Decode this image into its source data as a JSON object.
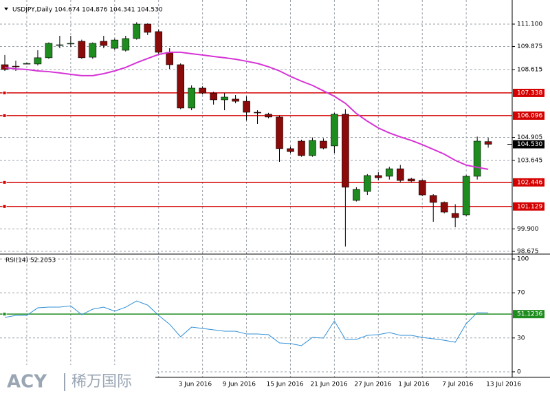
{
  "chart_data": [
    {
      "type": "candlestick",
      "title": "USDJPY,Daily 104.674 104.876 104.341 104.530",
      "categories": [
        null,
        null,
        null,
        null,
        null,
        null,
        null,
        null,
        null,
        null,
        null,
        null,
        null,
        null,
        null,
        null,
        "3 Jun 2016",
        null,
        null,
        null,
        "9 Jun 2016",
        null,
        null,
        null,
        "15 Jun 2016",
        null,
        null,
        null,
        "21 Jun 2016",
        null,
        null,
        null,
        "27 Jun 2016",
        null,
        null,
        null,
        "1 Jul 2016",
        null,
        null,
        null,
        "7 Jul 2016",
        null,
        null,
        null,
        "13 Jul 2016"
      ],
      "open": [
        108.88,
        108.8,
        108.94,
        108.92,
        109.26,
        109.95,
        110.02,
        110.16,
        109.29,
        110.16,
        109.78,
        109.67,
        110.31,
        111.1,
        110.69,
        109.56,
        108.88,
        106.51,
        107.6,
        107.33,
        106.96,
        107.0,
        106.88,
        106.28,
        106.17,
        106.02,
        104.29,
        104.7,
        103.91,
        104.7,
        104.44,
        106.17,
        101.46,
        101.95,
        102.82,
        102.78,
        103.19,
        102.63,
        102.55,
        101.73,
        101.35,
        100.75,
        100.67,
        102.78,
        104.674
      ],
      "high": [
        109.41,
        109.1,
        109.0,
        109.67,
        110.1,
        110.46,
        110.46,
        110.25,
        110.1,
        110.46,
        110.31,
        110.46,
        111.2,
        111.15,
        110.8,
        109.78,
        108.95,
        107.75,
        107.7,
        107.4,
        107.33,
        107.22,
        107.15,
        106.39,
        106.25,
        106.1,
        104.4,
        104.78,
        104.9,
        104.85,
        106.25,
        106.45,
        102.18,
        102.9,
        103.0,
        103.3,
        103.4,
        102.7,
        102.6,
        101.8,
        101.4,
        101.25,
        102.85,
        104.95,
        104.876
      ],
      "low": [
        108.54,
        108.54,
        108.9,
        108.84,
        109.2,
        109.78,
        109.86,
        109.2,
        109.2,
        109.78,
        109.7,
        109.6,
        110.25,
        110.5,
        109.4,
        108.65,
        106.45,
        106.39,
        107.25,
        106.7,
        106.39,
        106.77,
        105.83,
        105.64,
        105.95,
        103.57,
        104.05,
        103.85,
        103.85,
        104.25,
        104.05,
        98.94,
        101.4,
        101.76,
        102.55,
        102.6,
        102.45,
        102.45,
        101.7,
        100.29,
        100.75,
        99.99,
        100.6,
        102.6,
        104.341
      ],
      "close": [
        108.62,
        108.77,
        108.95,
        109.26,
        110.05,
        109.97,
        110.05,
        109.26,
        110.05,
        109.93,
        110.23,
        110.31,
        111.1,
        110.65,
        109.56,
        108.88,
        106.51,
        107.6,
        107.33,
        106.96,
        107.11,
        106.88,
        106.28,
        106.25,
        106.02,
        104.29,
        104.13,
        103.91,
        104.74,
        104.32,
        106.17,
        102.18,
        102.06,
        102.82,
        102.7,
        103.19,
        102.55,
        102.52,
        101.76,
        101.35,
        100.82,
        100.52,
        102.78,
        104.7,
        104.53
      ],
      "up_color": "#1e8c1e",
      "down_color": "#8b0a0a",
      "overlays": [
        {
          "color": "#d633d6",
          "values": [
            108.73,
            108.65,
            108.62,
            108.54,
            108.5,
            108.43,
            108.35,
            108.28,
            108.28,
            108.39,
            108.54,
            108.73,
            108.99,
            109.22,
            109.44,
            109.56,
            109.56,
            109.48,
            109.41,
            109.33,
            109.26,
            109.18,
            109.07,
            108.95,
            108.77,
            108.54,
            108.24,
            107.98,
            107.75,
            107.45,
            107.15,
            106.77,
            106.21,
            105.79,
            105.42,
            105.15,
            104.93,
            104.74,
            104.51,
            104.25,
            103.99,
            103.65,
            103.39,
            103.27,
            103.16
          ]
        }
      ],
      "hlines": [
        107.338,
        106.096,
        102.446,
        101.129
      ],
      "hline_color": "#d40000",
      "last_price": {
        "value": 104.53,
        "label": "104.530"
      },
      "ylim": [
        98.562,
        112.117
      ],
      "yticks": [
        {
          "value": 111.1,
          "label": "111.100"
        },
        109.875,
        108.615,
        104.905,
        103.645,
        {
          "value": 99.9,
          "label": "99.900"
        },
        98.675
      ],
      "grid": true
    },
    {
      "type": "line",
      "title": "RSI(14) 52.2053",
      "series": [
        {
          "color": "#2f8fd8",
          "values": [
            48.2,
            50.0,
            50.0,
            56.7,
            57.3,
            57.3,
            58.5,
            50.6,
            55.5,
            57.3,
            53.7,
            57.3,
            62.8,
            59.1,
            50.0,
            42.1,
            31.1,
            39.6,
            38.4,
            37.2,
            36.0,
            36.0,
            33.5,
            33.5,
            32.9,
            25.6,
            25.0,
            23.2,
            30.5,
            29.9,
            45.1,
            28.7,
            28.7,
            32.3,
            32.9,
            34.8,
            32.3,
            32.3,
            30.5,
            29.3,
            28.0,
            26.2,
            42.7,
            52.4,
            52.21
          ]
        }
      ],
      "level": 51.1236,
      "level_color": "#1e8c1e",
      "ylim": [
        -4.9,
        103.7
      ],
      "yticks": [
        100,
        70,
        30,
        0
      ],
      "grid": true
    }
  ],
  "watermark": {
    "brand": "ACY",
    "name": "稀万国际"
  }
}
